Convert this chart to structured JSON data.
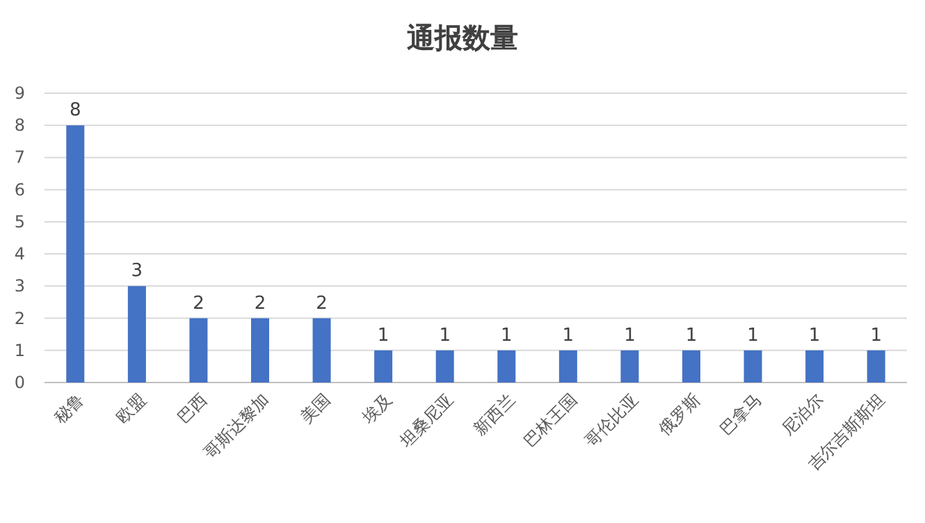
{
  "chart_data": {
    "type": "bar",
    "title": "通报数量",
    "categories": [
      "秘鲁",
      "欧盟",
      "巴西",
      "哥斯达黎加",
      "美国",
      "埃及",
      "坦桑尼亚",
      "新西兰",
      "巴林王国",
      "哥伦比亚",
      "俄罗斯",
      "巴拿马",
      "尼泊尔",
      "吉尔吉斯斯坦"
    ],
    "values": [
      8,
      3,
      2,
      2,
      2,
      1,
      1,
      1,
      1,
      1,
      1,
      1,
      1,
      1
    ],
    "color": "#4472c4",
    "ylim": [
      0,
      9
    ],
    "yticks": [
      0,
      1,
      2,
      3,
      4,
      5,
      6,
      7,
      8,
      9
    ],
    "grid": "y",
    "data_labels": true
  }
}
